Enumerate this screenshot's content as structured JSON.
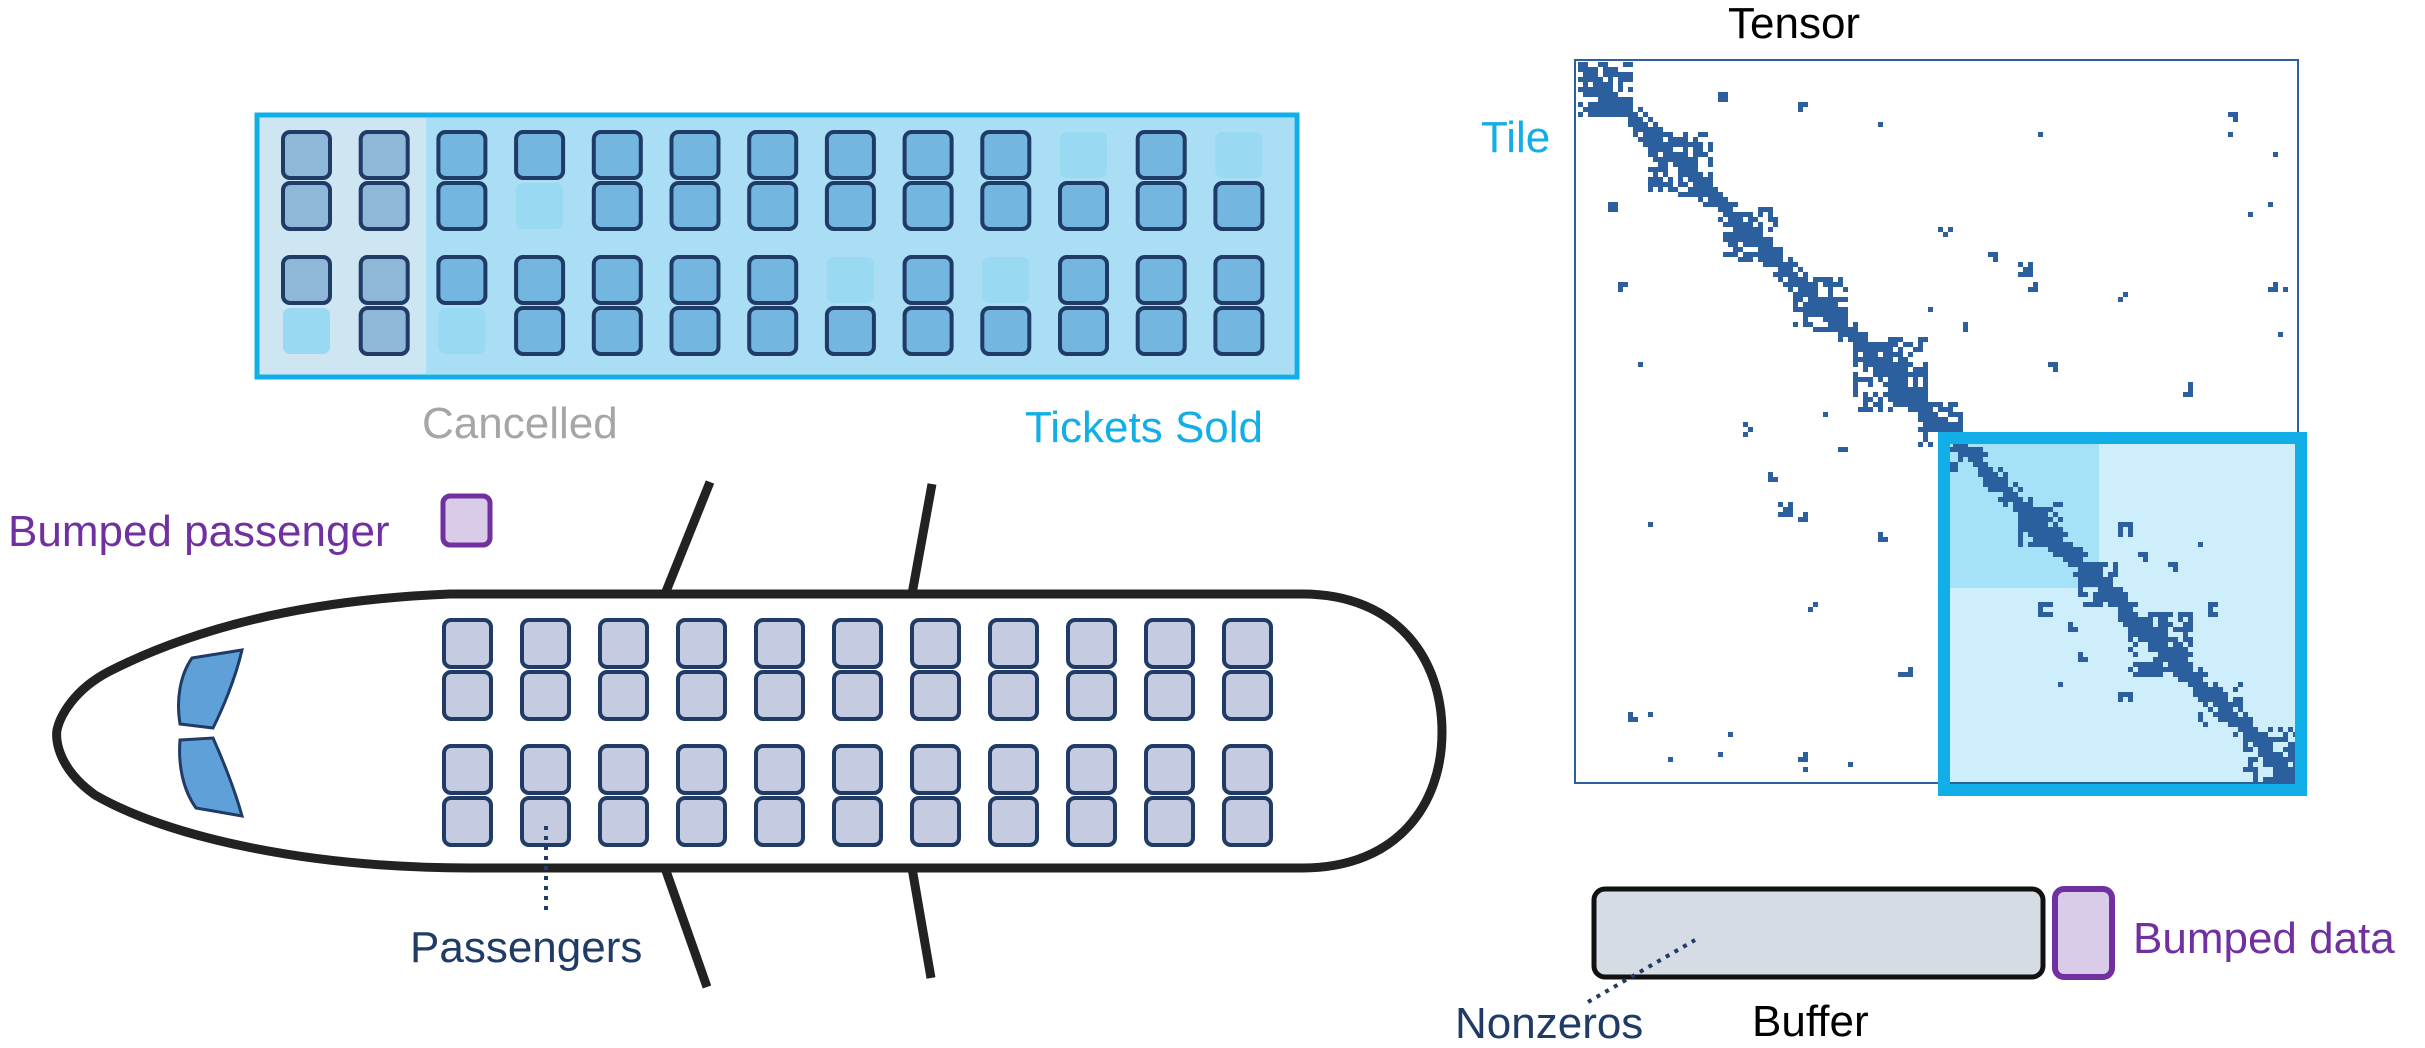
{
  "labels": {
    "cancelled": "Cancelled",
    "tickets_sold": "Tickets Sold",
    "bumped_passenger": "Bumped passenger",
    "passengers": "Passengers",
    "tensor": "Tensor",
    "tile": "Tile",
    "bumped_data": "Bumped data",
    "nonzeros": "Nonzeros",
    "buffer": "Buffer"
  },
  "colors": {
    "navy": "#1f3b66",
    "cyan": "#12aee7",
    "purple": "#7030a0",
    "gray": "#a6a6a6",
    "seat_fill": "#c5cbe0",
    "tile_fill": "#cfeefb",
    "tile_sub": "#a6e2f7",
    "matrix_blue": "#2b5f9e",
    "buffer_fill": "#d6dce4"
  },
  "tickets_panel": {
    "columns": 13,
    "rows": 4,
    "cancelled_columns": 2,
    "empty_seats": [
      [
        0,
        10
      ],
      [
        0,
        12
      ],
      [
        1,
        3
      ],
      [
        2,
        7
      ],
      [
        2,
        9
      ],
      [
        3,
        0
      ],
      [
        3,
        2
      ]
    ]
  },
  "airplane": {
    "seat_columns": 11,
    "seat_rows": 4
  }
}
